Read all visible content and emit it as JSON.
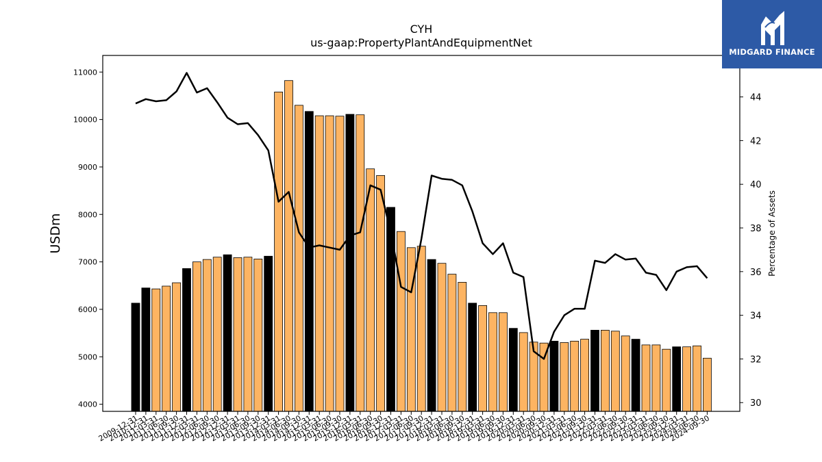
{
  "header": {
    "ticker": "CYH",
    "metric": "us-gaap:PropertyPlantAndEquipmentNet"
  },
  "logo": {
    "text": "MIDGARD FINANCE",
    "icon": "midgard-logo-icon",
    "color": "#2d5aa6"
  },
  "chart_data": {
    "type": "bar",
    "title": "CYH",
    "subtitle": "us-gaap:PropertyPlantAndEquipmentNet",
    "ylabel": "USDm",
    "y2label": "Percentage of Assets",
    "ylim": [
      3850,
      11350
    ],
    "y2lim": [
      29.6,
      45.9
    ],
    "yticks": [
      4000,
      5000,
      6000,
      7000,
      8000,
      9000,
      10000,
      11000
    ],
    "y2ticks": [
      30,
      32,
      34,
      36,
      38,
      40,
      42,
      44
    ],
    "grid": false,
    "colors": {
      "annual": "#000000",
      "quarterly": "#fdb462",
      "line": "#000000"
    },
    "categories": [
      "2009-12-31",
      "2010-12-31",
      "2011-03-31",
      "2011-06-30",
      "2011-09-30",
      "2011-12-31",
      "2012-03-31",
      "2012-06-30",
      "2012-09-30",
      "2012-12-31",
      "2013-03-31",
      "2013-06-30",
      "2013-09-30",
      "2013-12-31",
      "2014-03-31",
      "2014-06-30",
      "2014-09-30",
      "2014-12-31",
      "2015-03-31",
      "2015-06-30",
      "2015-09-30",
      "2015-12-31",
      "2016-03-31",
      "2016-06-30",
      "2016-09-30",
      "2016-12-31",
      "2017-03-31",
      "2017-06-30",
      "2017-09-30",
      "2017-12-31",
      "2018-03-31",
      "2018-06-30",
      "2018-09-30",
      "2018-12-31",
      "2019-03-31",
      "2019-06-30",
      "2019-09-30",
      "2019-12-31",
      "2020-03-31",
      "2020-06-30",
      "2020-09-30",
      "2020-12-31",
      "2021-03-31",
      "2021-06-30",
      "2021-09-30",
      "2021-12-31",
      "2022-03-31",
      "2022-06-30",
      "2022-09-30",
      "2022-12-31",
      "2023-03-31",
      "2023-06-30",
      "2023-09-30",
      "2023-12-31",
      "2024-03-31",
      "2024-06-30",
      "2024-09-30"
    ],
    "annual": [
      true,
      true,
      false,
      false,
      false,
      true,
      false,
      false,
      false,
      true,
      false,
      false,
      false,
      true,
      false,
      false,
      false,
      true,
      false,
      false,
      false,
      true,
      false,
      false,
      false,
      true,
      false,
      false,
      false,
      true,
      false,
      false,
      false,
      true,
      false,
      false,
      false,
      true,
      false,
      false,
      false,
      true,
      false,
      false,
      false,
      true,
      false,
      false,
      false,
      true,
      false,
      false,
      false,
      true,
      false,
      false,
      false
    ],
    "series": [
      {
        "name": "",
        "kind": "bar",
        "values": [
          6130,
          6450,
          6430,
          6490,
          6560,
          6860,
          7000,
          7050,
          7100,
          7150,
          7090,
          7100,
          7060,
          7120,
          10580,
          10820,
          10300,
          10170,
          10080,
          10080,
          10070,
          10110,
          10100,
          8960,
          8820,
          8150,
          7640,
          7300,
          7330,
          7050,
          6970,
          6740,
          6570,
          6130,
          6080,
          5930,
          5930,
          5600,
          5510,
          5310,
          5290,
          5330,
          5300,
          5330,
          5370,
          5560,
          5560,
          5540,
          5440,
          5370,
          5250,
          5250,
          5160,
          5210,
          5210,
          5230,
          4970
        ]
      },
      {
        "name": "Percentage of Assets",
        "kind": "line",
        "axis": "right",
        "values": [
          43.7,
          43.9,
          43.8,
          43.85,
          44.25,
          45.1,
          44.2,
          44.4,
          43.75,
          43.05,
          42.75,
          42.8,
          42.25,
          41.55,
          39.2,
          39.65,
          37.8,
          37.1,
          37.2,
          37.1,
          37.0,
          37.65,
          37.8,
          39.95,
          39.75,
          37.8,
          35.3,
          35.05,
          37.5,
          40.4,
          40.25,
          40.2,
          39.95,
          38.75,
          37.3,
          36.8,
          37.3,
          35.95,
          35.75,
          32.35,
          32.0,
          33.25,
          34.0,
          34.3,
          34.3,
          36.5,
          36.4,
          36.8,
          36.55,
          36.6,
          35.95,
          35.85,
          35.15,
          36.0,
          36.2,
          36.25,
          35.7
        ]
      }
    ]
  }
}
